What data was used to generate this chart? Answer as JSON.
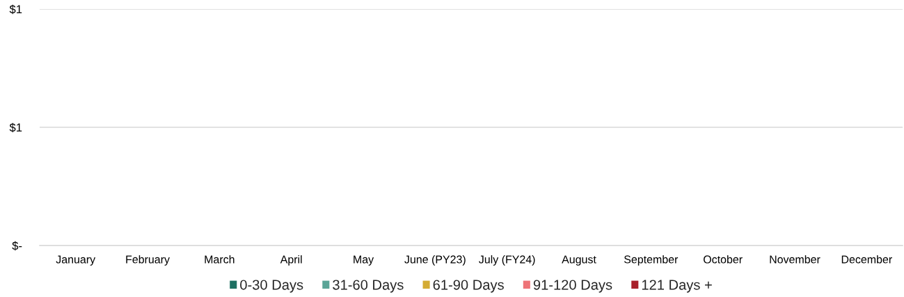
{
  "chart_data": {
    "type": "bar",
    "categories": [
      "January",
      "February",
      "March",
      "April",
      "May",
      "June (PY23)",
      "July (FY24)",
      "August",
      "September",
      "October",
      "November",
      "December"
    ],
    "series": [
      {
        "name": "0-30 Days",
        "color": "#1e7062",
        "values": [
          null,
          null,
          null,
          null,
          null,
          null,
          null,
          null,
          null,
          null,
          null,
          null
        ]
      },
      {
        "name": "31-60 Days",
        "color": "#5aa597",
        "values": [
          null,
          null,
          null,
          null,
          null,
          null,
          null,
          null,
          null,
          null,
          null,
          null
        ]
      },
      {
        "name": "61-90 Days",
        "color": "#d4ac34",
        "values": [
          null,
          null,
          null,
          null,
          null,
          null,
          null,
          null,
          null,
          null,
          null,
          null
        ]
      },
      {
        "name": "91-120 Days",
        "color": "#ee7478",
        "values": [
          null,
          null,
          null,
          null,
          null,
          null,
          null,
          null,
          null,
          null,
          null,
          null
        ]
      },
      {
        "name": "121 Days +",
        "color": "#a8202a",
        "values": [
          null,
          null,
          null,
          null,
          null,
          null,
          null,
          null,
          null,
          null,
          null,
          null
        ]
      }
    ],
    "ylim": [
      0,
      1
    ],
    "yticks": [
      {
        "value": 0,
        "label": "$-"
      },
      {
        "value": 0.5,
        "label": "$1"
      },
      {
        "value": 1,
        "label": "$1"
      }
    ],
    "grid": "y",
    "legend": "bottom"
  }
}
